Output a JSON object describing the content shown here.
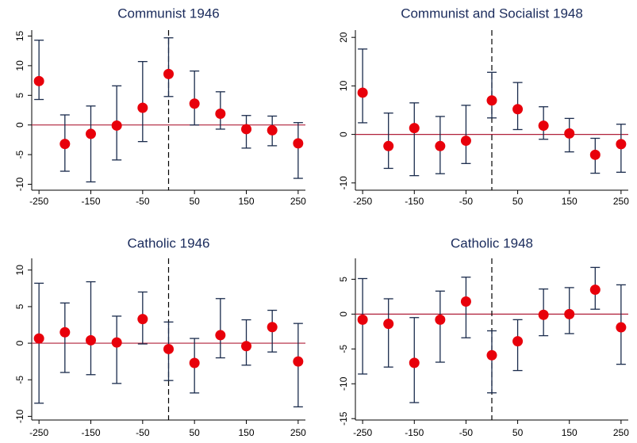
{
  "chart_data": [
    {
      "type": "errorbar",
      "title": "Communist 1946",
      "x": [
        -250,
        -200,
        -150,
        -100,
        -50,
        0,
        50,
        100,
        150,
        200,
        250
      ],
      "values": [
        7.4,
        -3.2,
        -1.5,
        -0.1,
        2.9,
        8.6,
        3.6,
        1.9,
        -0.7,
        -0.9,
        -3.1
      ],
      "lower": [
        4.3,
        -7.8,
        -9.6,
        -5.9,
        -2.8,
        4.8,
        0,
        -0.7,
        -3.9,
        -3.5,
        -9.0
      ],
      "upper": [
        14.3,
        1.7,
        3.2,
        6.6,
        10.7,
        14.7,
        9.1,
        5.6,
        1.6,
        1.5,
        0.4
      ],
      "color": "#e8000b",
      "error_color": "#1a2b4c",
      "xlim": [
        -264,
        264
      ],
      "xticks": [
        -250,
        -150,
        -50,
        50,
        150,
        250
      ],
      "ylim": [
        -11,
        16
      ],
      "yticks": [
        -10,
        -5,
        0,
        5,
        10,
        15
      ],
      "hline": 0,
      "vline": 0
    },
    {
      "type": "errorbar",
      "title": "Communist and Socialist 1948",
      "x": [
        -250,
        -200,
        -150,
        -100,
        -50,
        0,
        50,
        100,
        150,
        200,
        250
      ],
      "values": [
        8.6,
        -2.4,
        1.3,
        -2.4,
        -1.3,
        7.0,
        5.2,
        1.8,
        0.2,
        -4.2,
        -2.0
      ],
      "lower": [
        2.4,
        -7.0,
        -8.5,
        -8.1,
        -6.0,
        3.4,
        1.0,
        -1.0,
        -3.6,
        -8.0,
        -7.8
      ],
      "upper": [
        17.6,
        4.4,
        6.5,
        3.7,
        6.0,
        12.8,
        10.7,
        5.7,
        3.3,
        -0.8,
        2.1
      ],
      "color": "#e8000b",
      "error_color": "#1a2b4c",
      "xlim": [
        -264,
        264
      ],
      "xticks": [
        -250,
        -150,
        -50,
        50,
        150,
        250
      ],
      "ylim": [
        -11.5,
        21.5
      ],
      "yticks": [
        -10,
        0,
        10,
        20
      ],
      "hline": 0,
      "vline": 0
    },
    {
      "type": "errorbar",
      "title": "Catholic 1946",
      "x": [
        -250,
        -200,
        -150,
        -100,
        -50,
        0,
        50,
        100,
        150,
        200,
        250
      ],
      "values": [
        0.65,
        1.5,
        0.4,
        0.1,
        3.3,
        -0.8,
        -2.7,
        1.1,
        -0.4,
        2.2,
        -2.5
      ],
      "lower": [
        -8.2,
        -4.0,
        -4.3,
        -5.5,
        -0.1,
        -5.1,
        -6.8,
        -2.0,
        -3.0,
        -1.2,
        -8.7
      ],
      "upper": [
        8.2,
        5.5,
        8.4,
        3.7,
        7.0,
        2.9,
        0.65,
        6.1,
        3.2,
        4.5,
        2.7
      ],
      "color": "#e8000b",
      "error_color": "#1a2b4c",
      "xlim": [
        -264,
        264
      ],
      "xticks": [
        -250,
        -150,
        -50,
        50,
        150,
        250
      ],
      "ylim": [
        -10.5,
        11.6
      ],
      "yticks": [
        -10,
        -5,
        0,
        5,
        10
      ],
      "hline": 0,
      "vline": 0
    },
    {
      "type": "errorbar",
      "title": "Catholic 1948",
      "x": [
        -250,
        -200,
        -150,
        -100,
        -50,
        0,
        50,
        100,
        150,
        200,
        250
      ],
      "values": [
        -0.8,
        -1.4,
        -7.0,
        -0.8,
        1.8,
        -5.9,
        -3.9,
        -0.1,
        0.0,
        3.5,
        -1.9
      ],
      "lower": [
        -8.6,
        -7.6,
        -12.7,
        -6.9,
        -3.4,
        -11.3,
        -8.1,
        -3.1,
        -2.8,
        0.7,
        -7.2
      ],
      "upper": [
        5.1,
        2.2,
        -0.5,
        3.3,
        5.3,
        -2.4,
        -0.8,
        3.6,
        3.8,
        6.7,
        4.2
      ],
      "color": "#e8000b",
      "error_color": "#1a2b4c",
      "xlim": [
        -264,
        264
      ],
      "xticks": [
        -250,
        -150,
        -50,
        50,
        150,
        250
      ],
      "ylim": [
        -15.2,
        8
      ],
      "yticks": [
        -15,
        -10,
        -5,
        0,
        5
      ],
      "hline": 0,
      "vline": 0
    }
  ]
}
